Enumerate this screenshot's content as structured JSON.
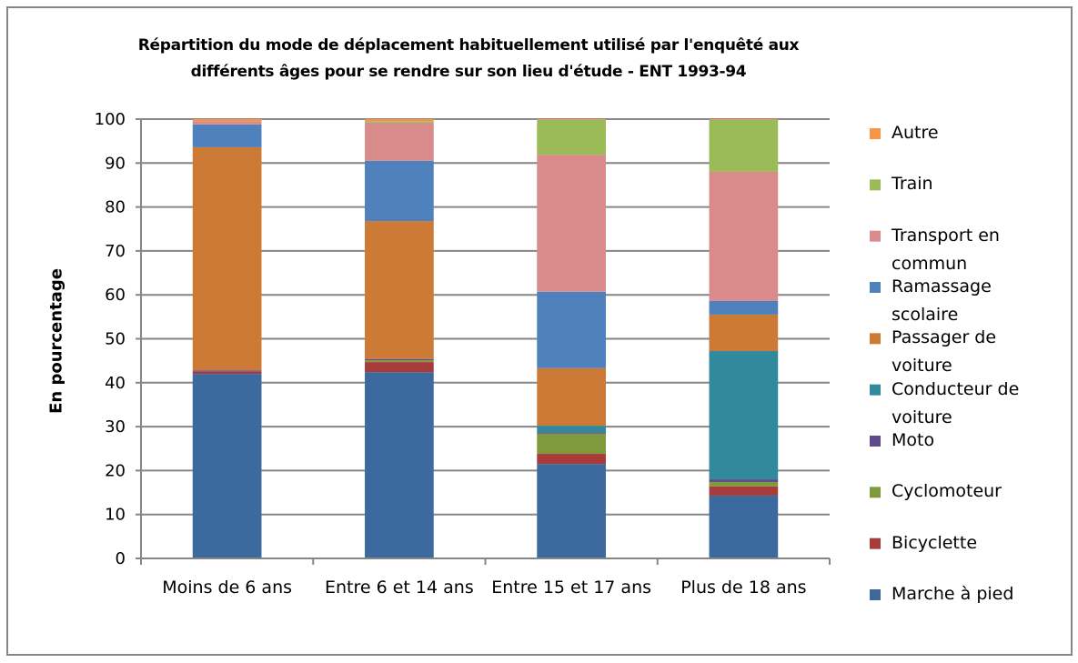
{
  "chart_data": {
    "type": "stacked_bar",
    "title": "Répartition du mode de déplacement habituellement utilisé par l'enquêté aux différents âges pour se rendre sur son lieu d'étude - ENT 1993-94",
    "ylabel": "En pourcentage",
    "categories": [
      "Moins de 6 ans",
      "Entre 6 et 14 ans",
      "Entre 15 et 17 ans",
      "Plus de 18 ans"
    ],
    "ylim": [
      0,
      100
    ],
    "yticks": [
      0,
      10,
      20,
      30,
      40,
      50,
      60,
      70,
      80,
      90,
      100
    ],
    "grid": true,
    "legend": "right",
    "series": [
      {
        "name": "Marche à pied",
        "color": "#3d6a9e",
        "values": [
          42.0,
          42.4,
          21.5,
          14.3
        ]
      },
      {
        "name": "Bicyclette",
        "color": "#a83c3a",
        "values": [
          0.5,
          2.3,
          2.3,
          2.1
        ]
      },
      {
        "name": "Cyclomoteur",
        "color": "#7f9a3d",
        "values": [
          0,
          0.4,
          4.6,
          1.0
        ]
      },
      {
        "name": "Moto",
        "color": "#5f4a8b",
        "values": [
          0.3,
          0.3,
          0.3,
          0.6
        ]
      },
      {
        "name": "Conducteur de voiture",
        "color": "#31899e",
        "values": [
          0,
          0,
          1.5,
          29.2
        ]
      },
      {
        "name": "Passager de voiture",
        "color": "#cc7a36",
        "values": [
          50.8,
          31.4,
          13.1,
          8.3
        ]
      },
      {
        "name": "Ramassage scolaire",
        "color": "#4f81bd",
        "values": [
          5.2,
          13.7,
          17.4,
          3.1
        ]
      },
      {
        "name": "Transport en commun",
        "color": "#d98b8b",
        "values": [
          0.7,
          8.7,
          31.2,
          29.4
        ]
      },
      {
        "name": "Train",
        "color": "#9bbb59",
        "values": [
          0,
          0.3,
          7.9,
          11.8
        ]
      },
      {
        "name": "Autre",
        "color": "#f79646",
        "values": [
          0.5,
          0.5,
          0.2,
          0.2
        ]
      }
    ]
  }
}
